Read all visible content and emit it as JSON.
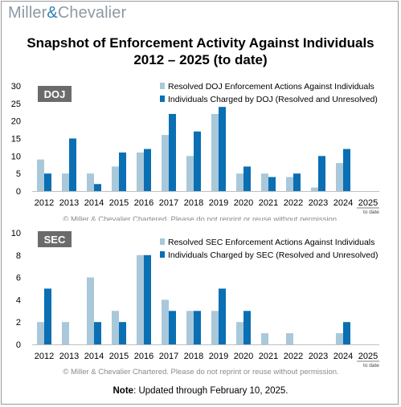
{
  "brand": {
    "name_part1": "Miller",
    "amp": "&",
    "name_part2": "Chevalier",
    "accent_color": "#2a7fb5"
  },
  "title_line1": "Snapshot of Enforcement Activity Against Individuals",
  "title_line2": "2012 – 2025 (to date)",
  "note": {
    "label": "Note",
    "text": ": Updated through February 10, 2025."
  },
  "chart_data": [
    {
      "type": "bar",
      "panel_label": "DOJ",
      "categories": [
        "2012",
        "2013",
        "2014",
        "2015",
        "2016",
        "2017",
        "2018",
        "2019",
        "2020",
        "2021",
        "2022",
        "2023",
        "2024",
        "2025"
      ],
      "category_sublabels": {
        "2025": "to date"
      },
      "ylim": [
        0,
        30
      ],
      "yticks": [
        0,
        5,
        10,
        15,
        20,
        25,
        30
      ],
      "grid": false,
      "legend_position": "top-right",
      "series": [
        {
          "name": "Resolved DOJ Enforcement Actions Against Individuals",
          "color": "#a9c8da",
          "values": [
            9,
            5,
            5,
            7,
            11,
            16,
            10,
            22,
            5,
            5,
            4,
            1,
            8,
            0
          ]
        },
        {
          "name": "Individuals Charged by DOJ (Resolved and Unresolved)",
          "color": "#0a6fb3",
          "values": [
            5,
            15,
            2,
            11,
            12,
            22,
            17,
            24,
            7,
            4,
            5,
            10,
            12,
            0
          ]
        }
      ],
      "watermark": "© Miller & Chevalier Chartered. Please do not reprint or reuse without permission."
    },
    {
      "type": "bar",
      "panel_label": "SEC",
      "categories": [
        "2012",
        "2013",
        "2014",
        "2015",
        "2016",
        "2017",
        "2018",
        "2019",
        "2020",
        "2021",
        "2022",
        "2023",
        "2024",
        "2025"
      ],
      "category_sublabels": {
        "2025": "to date"
      },
      "ylim": [
        0,
        10
      ],
      "yticks": [
        0,
        2,
        4,
        6,
        8,
        10
      ],
      "grid": false,
      "legend_position": "top-right",
      "series": [
        {
          "name": "Resolved SEC Enforcement Actions Against Individuals",
          "color": "#a9c8da",
          "values": [
            2,
            2,
            6,
            3,
            8,
            4,
            3,
            3,
            2,
            1,
            1,
            0,
            1,
            0
          ]
        },
        {
          "name": "Individuals Charged by SEC (Resolved and Unresolved)",
          "color": "#0a6fb3",
          "values": [
            5,
            0,
            2,
            2,
            8,
            3,
            3,
            5,
            3,
            0,
            0,
            0,
            2,
            0
          ]
        }
      ],
      "watermark": "© Miller & Chevalier Chartered. Please do not reprint or reuse without permission."
    }
  ]
}
